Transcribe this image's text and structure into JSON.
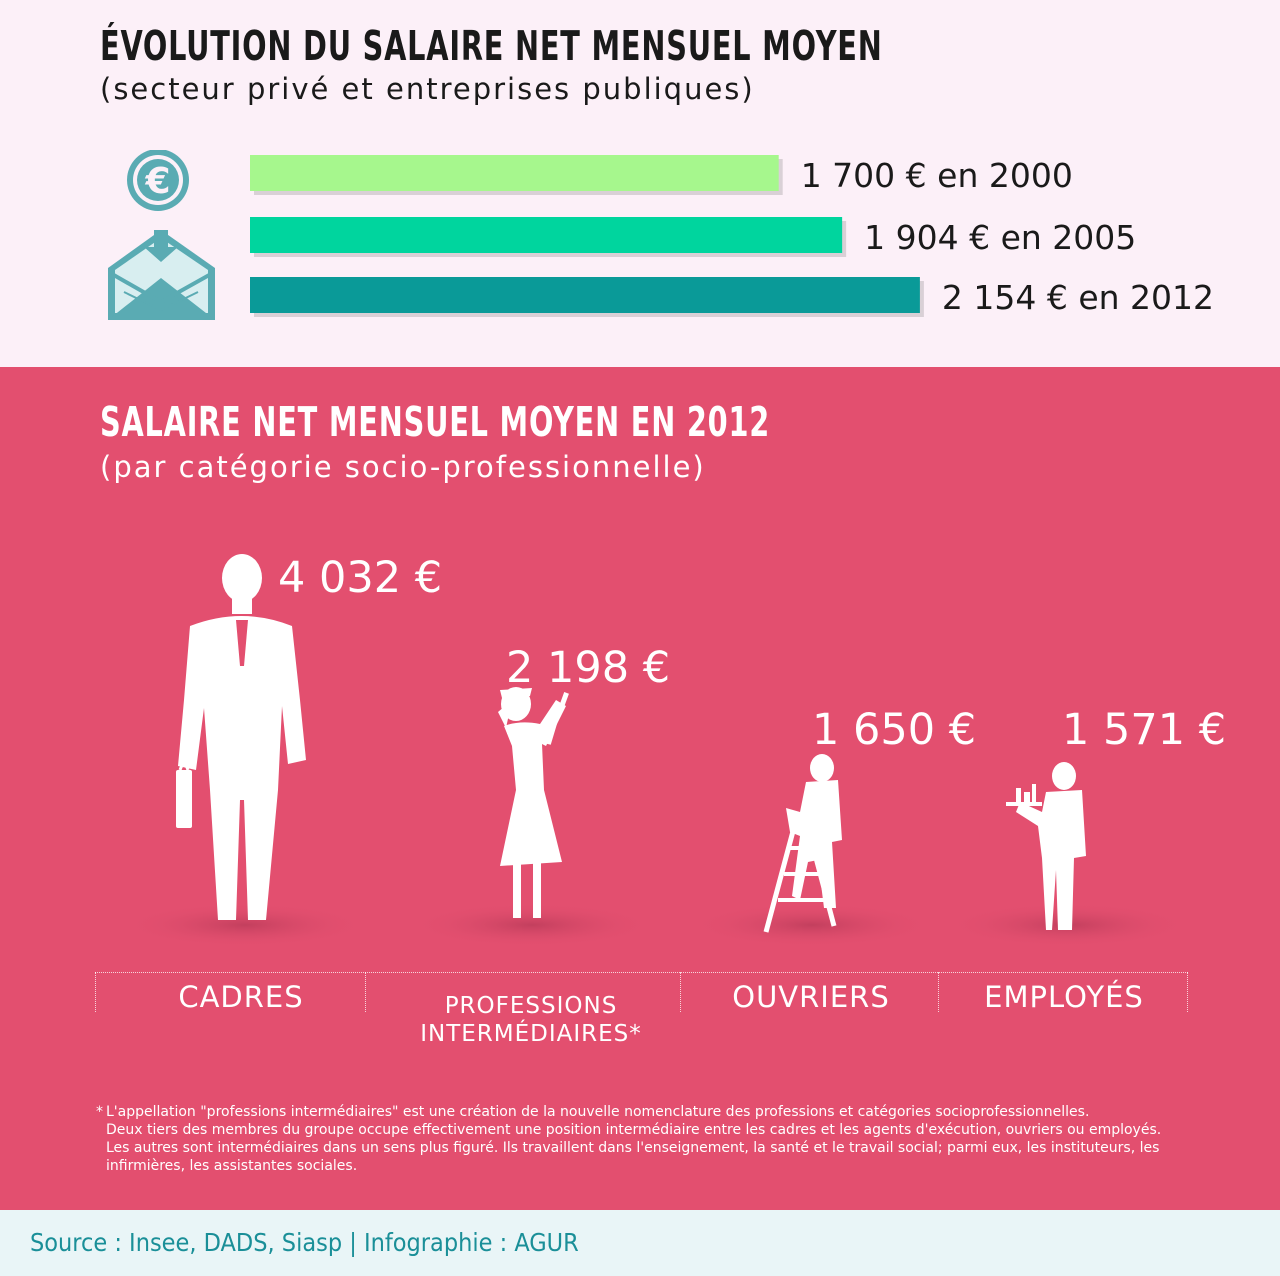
{
  "colors": {
    "top_background": "#fcf0f8",
    "pink_background": "#e34f6f",
    "footer_background": "#e9f5f7",
    "bar_2000": "#a6f78d",
    "bar_2005": "#00d59e",
    "bar_2012": "#0a9a98",
    "icon_teal": "#5aabb3"
  },
  "header": {
    "title": "ÉVOLUTION DU SALAIRE NET MENSUEL MOYEN",
    "subtitle": "(secteur privé et entreprises publiques)",
    "icons": [
      "euro-coin-icon",
      "envelope-icon"
    ]
  },
  "section2": {
    "title": "SALAIRE NET MENSUEL MOYEN EN 2012",
    "subtitle": "(par catégorie socio-professionnelle)"
  },
  "chart_data": [
    {
      "type": "bar",
      "orientation": "horizontal",
      "title": "ÉVOLUTION DU SALAIRE NET MENSUEL MOYEN",
      "subtitle": "(secteur privé et entreprises publiques)",
      "categories": [
        "2000",
        "2005",
        "2012"
      ],
      "values": [
        1700,
        1904,
        2154
      ],
      "data_labels": [
        "1 700 € en 2000",
        "1 904 € en 2005",
        "2 154 € en 2012"
      ],
      "unit": "€"
    },
    {
      "type": "bar",
      "title": "SALAIRE NET MENSUEL MOYEN EN 2012",
      "subtitle": "(par catégorie socio-professionnelle)",
      "categories": [
        "CADRES",
        "PROFESSIONS INTERMÉDIAIRES*",
        "OUVRIERS",
        "EMPLOYÉS"
      ],
      "values": [
        4032,
        2198,
        1650,
        1571
      ],
      "data_labels": [
        "4 032 €",
        "2 198 €",
        "1 650 €",
        "1 571 €"
      ],
      "unit": "€",
      "mark_style": "human silhouettes scaled by value"
    }
  ],
  "categories_display": {
    "cadres": "CADRES",
    "prof_line1": "PROFESSIONS",
    "prof_line2": "INTERMÉDIAIRES*",
    "ouvriers": "OUVRIERS",
    "employes": "EMPLOYÉS"
  },
  "footnote": {
    "marker": "*",
    "lines": [
      "L'appellation \"professions intermédiaires\" est une création de la nouvelle nomenclature des professions et catégories socioprofessionnelles.",
      "Deux tiers des membres du groupe occupe effectivement une position intermédiaire entre les cadres et les agents d'exécution, ouvriers ou employés.",
      "Les autres sont intermédiaires dans un sens plus figuré. Ils travaillent dans l'enseignement, la santé et le travail social; parmi eux, les instituteurs, les",
      "infirmières, les assistantes sociales."
    ]
  },
  "source": "Source : Insee, DADS, Siasp | Infographie : AGUR"
}
